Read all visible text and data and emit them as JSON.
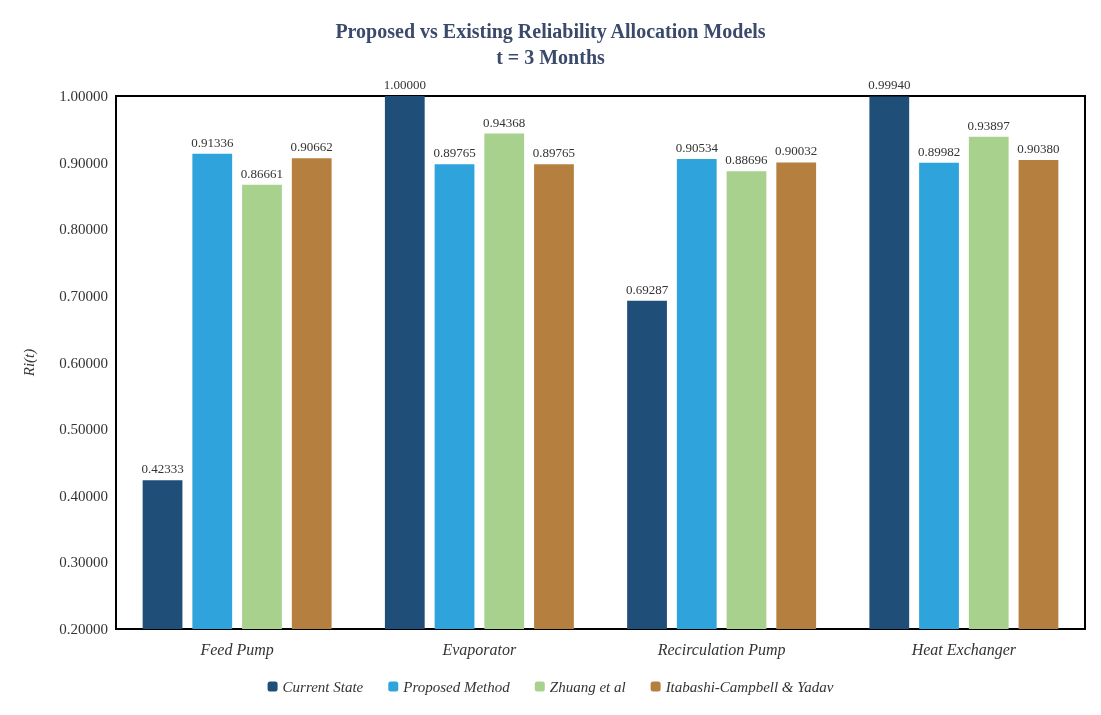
{
  "chart_data": {
    "type": "bar",
    "title": "Proposed vs Existing Reliability Allocation Models",
    "subtitle": "t = 3 Months",
    "ylabel": "Ri(t)",
    "categories": [
      "Feed Pump",
      "Evaporator",
      "Recirculation Pump",
      "Heat Exchanger"
    ],
    "series": [
      {
        "name": "Current State",
        "color": "#1f4e79",
        "values": [
          0.42333,
          1.0,
          0.69287,
          0.9994
        ],
        "value_labels": [
          "0.42333",
          "1.00000",
          "0.69287",
          "0.99940"
        ]
      },
      {
        "name": "Proposed Method",
        "color": "#2ea3dc",
        "values": [
          0.91336,
          0.89765,
          0.90534,
          0.89982
        ],
        "value_labels": [
          "0.91336",
          "0.89765",
          "0.90534",
          "0.89982"
        ]
      },
      {
        "name": "Zhuang et al",
        "color": "#a9d18e",
        "values": [
          0.86661,
          0.94368,
          0.88696,
          0.93897
        ],
        "value_labels": [
          "0.86661",
          "0.94368",
          "0.88696",
          "0.93897"
        ]
      },
      {
        "name": "Itabashi-Campbell & Yadav",
        "color": "#b5803f",
        "values": [
          0.90662,
          0.89765,
          0.90032,
          0.9038
        ],
        "value_labels": [
          "0.90662",
          "0.89765",
          "0.90032",
          "0.90380"
        ]
      }
    ],
    "ylim": [
      0.2,
      1.0
    ],
    "yticks": [
      {
        "value": 0.2,
        "label": "0.20000"
      },
      {
        "value": 0.3,
        "label": "0.30000"
      },
      {
        "value": 0.4,
        "label": "0.40000"
      },
      {
        "value": 0.5,
        "label": "0.50000"
      },
      {
        "value": 0.6,
        "label": "0.60000"
      },
      {
        "value": 0.7,
        "label": "0.70000"
      },
      {
        "value": 0.8,
        "label": "0.80000"
      },
      {
        "value": 0.9,
        "label": "0.90000"
      },
      {
        "value": 1.0,
        "label": "1.00000"
      }
    ],
    "grid": false,
    "legend": "bottom"
  }
}
